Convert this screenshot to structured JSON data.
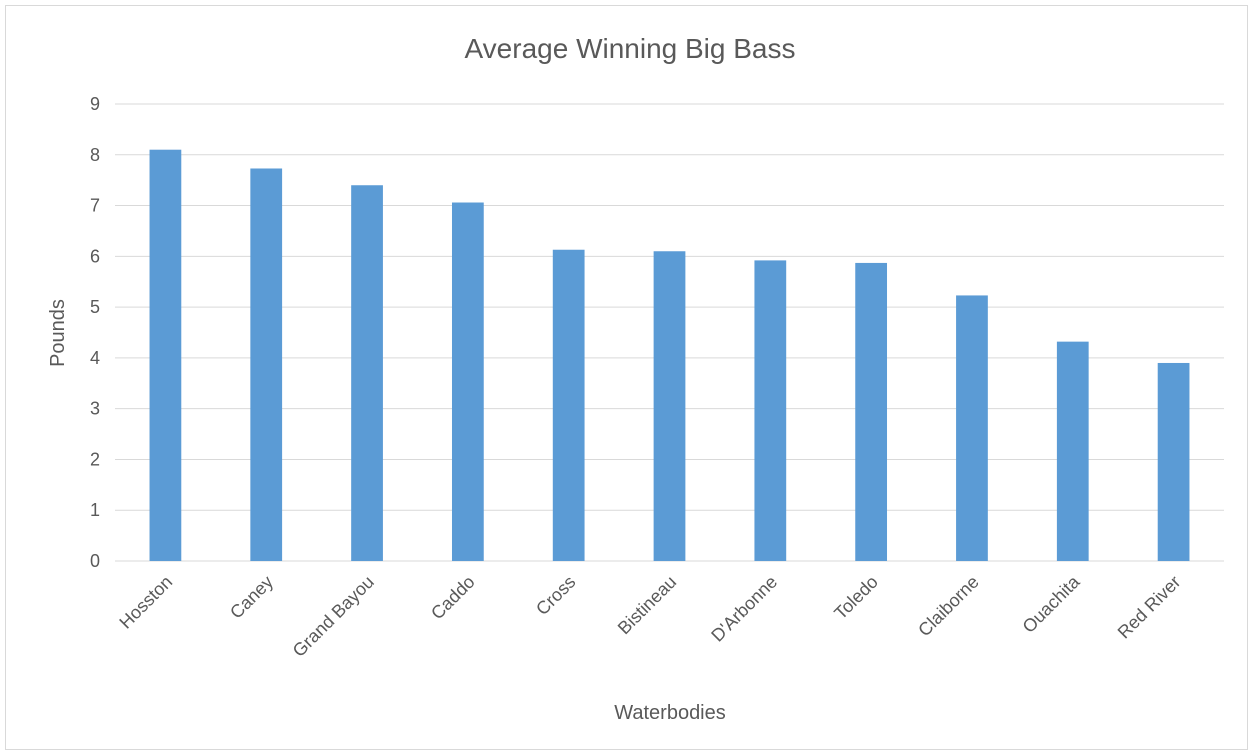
{
  "chart_data": {
    "type": "bar",
    "title": "Average Winning Big Bass",
    "xlabel": "Waterbodies",
    "ylabel": "Pounds",
    "categories": [
      "Hosston",
      "Caney",
      "Grand Bayou",
      "Caddo",
      "Cross",
      "Bistineau",
      "D'Arbonne",
      "Toledo",
      "Claiborne",
      "Ouachita",
      "Red River"
    ],
    "values": [
      8.1,
      7.73,
      7.4,
      7.06,
      6.13,
      6.1,
      5.92,
      5.87,
      5.23,
      4.32,
      3.9
    ],
    "ylim": [
      0,
      9
    ],
    "yticks": [
      0,
      1,
      2,
      3,
      4,
      5,
      6,
      7,
      8,
      9
    ],
    "grid": true,
    "legend": "none",
    "colors": {
      "bar": "#5b9bd5",
      "grid": "#d9d9d9",
      "text": "#595959"
    }
  }
}
